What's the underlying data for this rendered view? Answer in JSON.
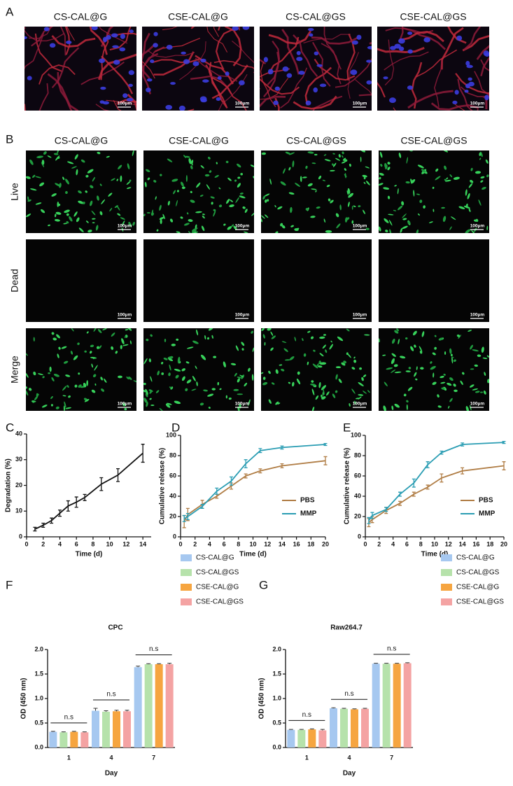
{
  "figure": {
    "panel_a": {
      "label": "A",
      "titles": [
        "CS-CAL@G",
        "CSE-CAL@G",
        "CS-CAL@GS",
        "CSE-CAL@GS"
      ],
      "scale_bar": "100μm"
    },
    "panel_b": {
      "label": "B",
      "titles": [
        "CS-CAL@G",
        "CSE-CAL@G",
        "CS-CAL@GS",
        "CSE-CAL@GS"
      ],
      "rows": [
        "Live",
        "Dead",
        "Merge"
      ],
      "scale_bar": "100μm"
    }
  },
  "chart_data": [
    {
      "type": "line",
      "label": "C",
      "xlabel": "Time (d)",
      "ylabel": "Degradation (%)",
      "x": [
        1,
        2,
        3,
        4,
        5,
        6,
        7,
        9,
        11,
        14
      ],
      "series": [
        {
          "color": "#111111",
          "values": [
            3,
            4.5,
            6.3,
            9.2,
            12,
            13.5,
            15.3,
            20.5,
            24,
            32.5
          ],
          "errors": [
            0.7,
            0.8,
            1,
            1.2,
            2,
            2,
            1.2,
            2.5,
            2.5,
            3.5
          ]
        }
      ],
      "xlim": [
        0,
        15
      ],
      "xticks": [
        0,
        2,
        4,
        6,
        8,
        10,
        12,
        14
      ],
      "ylim": [
        0,
        40
      ],
      "yticks": [
        0,
        10,
        20,
        30,
        40
      ],
      "grid": false
    },
    {
      "type": "line",
      "label": "D",
      "xlabel": "Time (d)",
      "ylabel": "Cumulative release (%)",
      "x": [
        0.5,
        1,
        3,
        5,
        7,
        9,
        11,
        14,
        20
      ],
      "series": [
        {
          "name": "PBS",
          "color": "#b07d45",
          "values": [
            15,
            22,
            32,
            40,
            50,
            60,
            65,
            70,
            75
          ],
          "errors": [
            6,
            6,
            4,
            2,
            3,
            2,
            2,
            2,
            4
          ]
        },
        {
          "name": "MMP",
          "color": "#2a9db3",
          "values": [
            18,
            20,
            30,
            45,
            55,
            72,
            85,
            88,
            91
          ],
          "errors": [
            3,
            3,
            2,
            3,
            4,
            4,
            2,
            1.5,
            1
          ]
        }
      ],
      "xlim": [
        0,
        20
      ],
      "xticks": [
        0,
        2,
        4,
        6,
        8,
        10,
        12,
        14,
        16,
        18,
        20
      ],
      "ylim": [
        0,
        100
      ],
      "yticks": [
        0,
        20,
        40,
        60,
        80,
        100
      ],
      "grid": false,
      "legend": "lower right"
    },
    {
      "type": "line",
      "label": "E",
      "xlabel": "Time (d)",
      "ylabel": "Cumulative release (%)",
      "x": [
        0.5,
        1,
        3,
        5,
        7,
        9,
        11,
        14,
        20
      ],
      "series": [
        {
          "name": "PBS",
          "color": "#b07d45",
          "values": [
            14,
            17,
            26,
            33,
            42,
            49,
            58,
            65,
            70
          ],
          "errors": [
            4,
            3,
            3,
            2,
            2,
            2,
            4,
            3,
            4
          ]
        },
        {
          "name": "MMP",
          "color": "#2a9db3",
          "values": [
            16,
            21,
            27,
            42,
            53,
            71,
            83,
            91,
            93
          ],
          "errors": [
            3,
            3,
            2,
            2,
            4,
            3,
            1.5,
            1.5,
            1
          ]
        }
      ],
      "xlim": [
        0,
        20
      ],
      "xticks": [
        0,
        2,
        4,
        6,
        8,
        10,
        12,
        14,
        16,
        18,
        20
      ],
      "ylim": [
        0,
        100
      ],
      "yticks": [
        0,
        20,
        40,
        60,
        80,
        100
      ],
      "grid": false,
      "legend": "lower right"
    },
    {
      "type": "bar",
      "label": "F",
      "title": "CPC",
      "xlabel": "Day",
      "ylabel": "OD (450 nm)",
      "categories": [
        "1",
        "4",
        "7"
      ],
      "series": [
        {
          "name": "CS-CAL@G",
          "color": "#a6c8f0",
          "values": [
            0.32,
            0.75,
            1.64
          ],
          "errors": [
            0.01,
            0.05,
            0.02
          ]
        },
        {
          "name": "CS-CAL@GS",
          "color": "#b6e2ab",
          "values": [
            0.31,
            0.73,
            1.7
          ],
          "errors": [
            0.01,
            0.02,
            0.01
          ]
        },
        {
          "name": "CSE-CAL@G",
          "color": "#f6a540",
          "values": [
            0.32,
            0.74,
            1.7
          ],
          "errors": [
            0.01,
            0.02,
            0.01
          ]
        },
        {
          "name": "CSE-CAL@GS",
          "color": "#f4a3a3",
          "values": [
            0.31,
            0.74,
            1.7
          ],
          "errors": [
            0.01,
            0.02,
            0.02
          ]
        }
      ],
      "annotations": [
        "n.s",
        "n.s",
        "n.s"
      ],
      "ylim": [
        0,
        2
      ],
      "yticks": [
        {
          "value": 0,
          "label": "0.0"
        },
        {
          "value": 0.5,
          "label": "0.5"
        },
        {
          "value": 1,
          "label": "1.0"
        },
        {
          "value": 1.5,
          "label": "1.5"
        },
        {
          "value": 2,
          "label": "2.0"
        }
      ],
      "grid": false,
      "legend": "upper right"
    },
    {
      "type": "bar",
      "label": "G",
      "title": "Raw264.7",
      "xlabel": "Day",
      "ylabel": "OD (450 nm)",
      "categories": [
        "1",
        "4",
        "7"
      ],
      "series": [
        {
          "name": "CS-CAL@G",
          "color": "#a6c8f0",
          "values": [
            0.36,
            0.8,
            1.71
          ],
          "errors": [
            0.01,
            0.01,
            0.01
          ]
        },
        {
          "name": "CS-CAL@GS",
          "color": "#b6e2ab",
          "values": [
            0.36,
            0.79,
            1.71
          ],
          "errors": [
            0.01,
            0.01,
            0.01
          ]
        },
        {
          "name": "CSE-CAL@G",
          "color": "#f6a540",
          "values": [
            0.37,
            0.78,
            1.71
          ],
          "errors": [
            0.01,
            0.01,
            0.01
          ]
        },
        {
          "name": "CSE-CAL@GS",
          "color": "#f4a3a3",
          "values": [
            0.35,
            0.79,
            1.72
          ],
          "errors": [
            0.02,
            0.01,
            0.01
          ]
        }
      ],
      "annotations": [
        "n.s",
        "n.s",
        "n.s"
      ],
      "ylim": [
        0,
        2
      ],
      "yticks": [
        {
          "value": 0,
          "label": "0.0"
        },
        {
          "value": 0.5,
          "label": "0.5"
        },
        {
          "value": 1,
          "label": "1.0"
        },
        {
          "value": 1.5,
          "label": "1.5"
        },
        {
          "value": 2,
          "label": "2.0"
        }
      ],
      "grid": false,
      "legend": "upper right"
    }
  ]
}
